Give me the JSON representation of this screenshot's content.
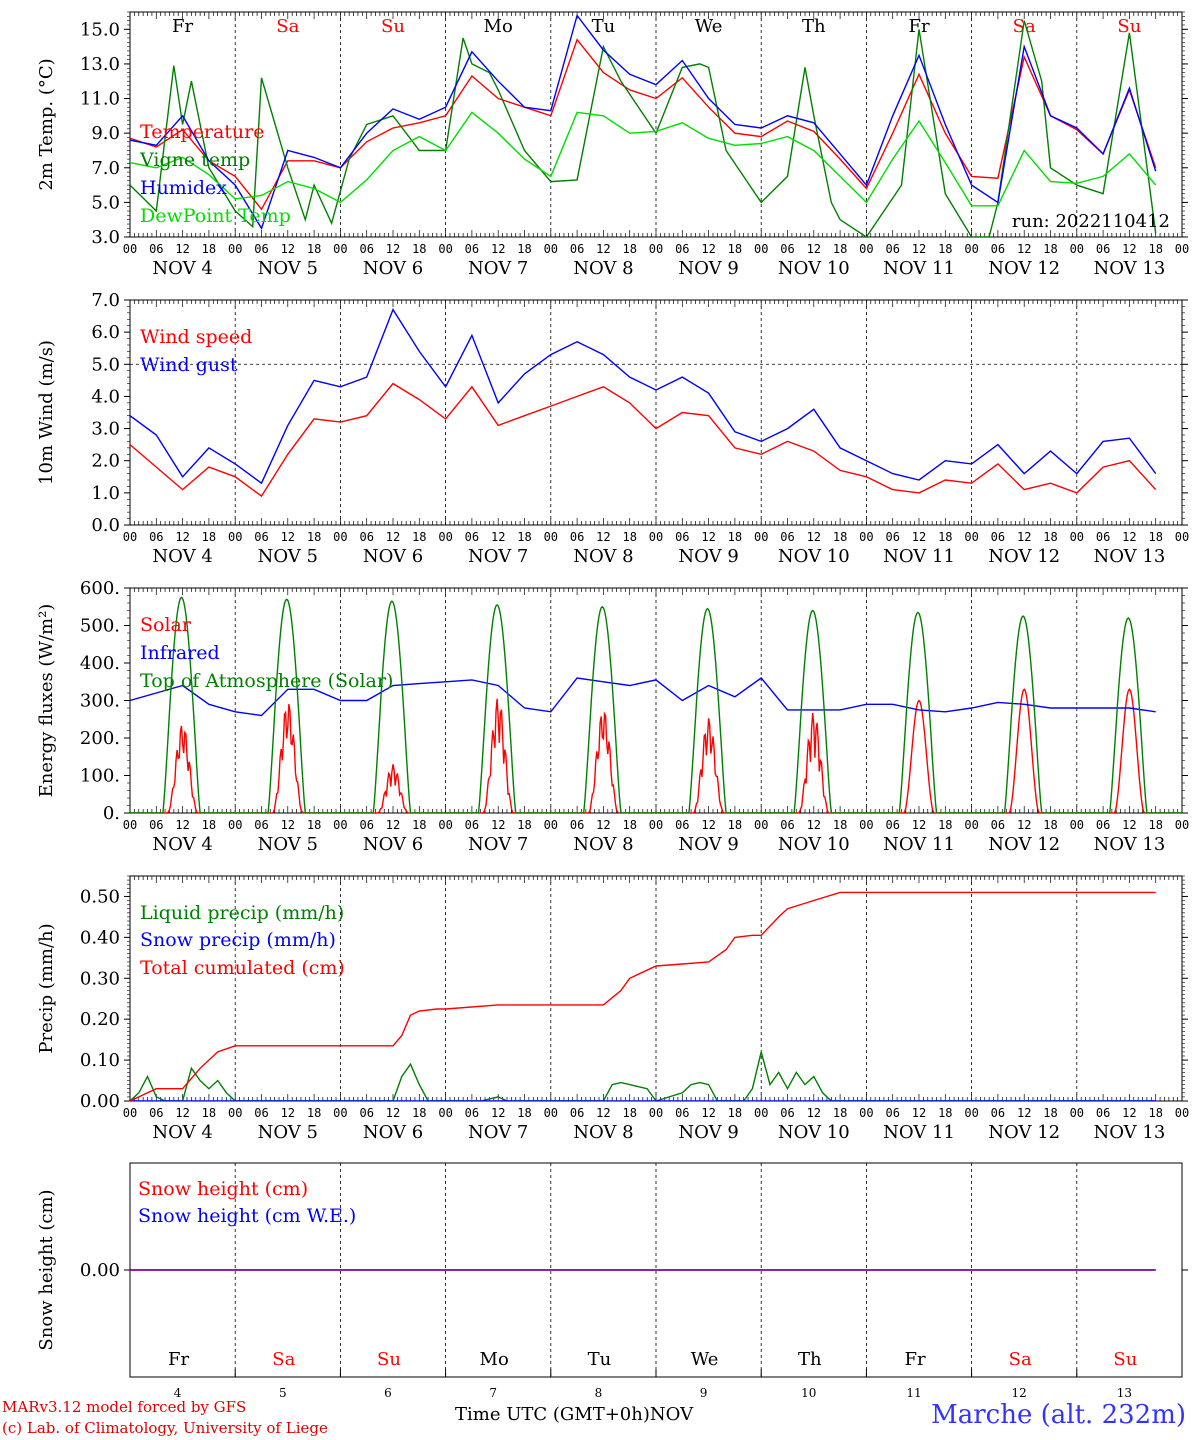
{
  "days": {
    "short": [
      "Fr",
      "Sa",
      "Su",
      "Mo",
      "Tu",
      "We",
      "Th",
      "Fr",
      "Sa",
      "Su"
    ],
    "weekend": [
      false,
      true,
      true,
      false,
      false,
      false,
      false,
      false,
      true,
      true
    ],
    "labels": [
      "NOV  4",
      "NOV  5",
      "NOV  6",
      "NOV  7",
      "NOV  8",
      "NOV  9",
      "NOV 10",
      "NOV 11",
      "NOV 12",
      "NOV 13"
    ],
    "numbers": [
      "4",
      "5",
      "6",
      "7",
      "8",
      "9",
      "10",
      "11",
      "12",
      "13"
    ],
    "hours": [
      "00",
      "06",
      "12",
      "18"
    ],
    "hour_end": "00"
  },
  "colors": {
    "red": "#ff0000",
    "dark_green": "#008000",
    "blue": "#0000ff",
    "light_green": "#00dd00",
    "purple": "#7f00a0",
    "station": "#3333ff"
  },
  "footer": {
    "credit_line1": "MARv3.12 model forced by GFS",
    "credit_line2": "(c) Lab. of Climatology, University of Liege",
    "time_axis": "Time UTC (GMT+0h)",
    "month": "NOV",
    "station": "Marche (alt. 232m)"
  },
  "chart_data": [
    {
      "type": "line",
      "ylabel": "2m Temp. (°C)",
      "ylim": [
        3,
        16
      ],
      "yticks": [
        "3.0",
        "5.0",
        "7.0",
        "9.0",
        "11.0",
        "13.0",
        "15.0"
      ],
      "run_label": "run: 2022110412",
      "x_unit": "hours since NOV 4 00 UTC",
      "series": [
        {
          "name": "Temperature",
          "color": "#ff0000",
          "x": [
            0,
            6,
            12,
            18,
            24,
            30,
            36,
            42,
            48,
            54,
            60,
            66,
            72,
            78,
            84,
            90,
            96,
            102,
            108,
            114,
            120,
            126,
            132,
            138,
            144,
            150,
            156,
            162,
            168,
            174,
            180,
            186,
            192,
            198,
            204,
            210,
            216,
            222,
            228,
            234
          ],
          "y": [
            8.7,
            8.2,
            9.2,
            7.4,
            6.5,
            4.6,
            7.4,
            7.4,
            7.0,
            8.5,
            9.3,
            9.6,
            10.0,
            12.3,
            11.0,
            10.5,
            10.0,
            14.4,
            12.5,
            11.5,
            11.0,
            12.2,
            10.5,
            9.0,
            8.8,
            9.7,
            9.1,
            7.5,
            5.8,
            9.0,
            12.4,
            9.0,
            6.5,
            6.4,
            13.4,
            10.0,
            9.2,
            7.8,
            11.5,
            7.0
          ]
        },
        {
          "name": "Vigne temp",
          "color": "#008000",
          "x": [
            0,
            6,
            10,
            12,
            14,
            18,
            24,
            28,
            30,
            36,
            40,
            42,
            46,
            50,
            54,
            60,
            66,
            72,
            76,
            78,
            82,
            84,
            90,
            96,
            102,
            108,
            112,
            120,
            126,
            130,
            132,
            136,
            144,
            150,
            154,
            156,
            160,
            162,
            168,
            176,
            180,
            186,
            192,
            196,
            198,
            204,
            208,
            210,
            216,
            222,
            228,
            234
          ],
          "y": [
            6.0,
            4.5,
            12.9,
            9.5,
            12.0,
            7.0,
            4.5,
            3.6,
            12.2,
            7.0,
            4.0,
            6.0,
            3.8,
            7.5,
            9.5,
            10.0,
            8.0,
            8.0,
            14.5,
            13.0,
            12.5,
            11.5,
            8.0,
            6.2,
            6.3,
            14.0,
            12.0,
            9.0,
            12.8,
            13.0,
            12.8,
            8.0,
            5.0,
            6.5,
            12.8,
            10.0,
            5.0,
            4.0,
            3.0,
            6.0,
            15.0,
            5.5,
            3.0,
            3.0,
            5.0,
            15.5,
            12.0,
            7.0,
            6.0,
            5.5,
            14.8,
            3.2
          ]
        },
        {
          "name": "Humidex",
          "color": "#0000ff",
          "x": [
            0,
            6,
            12,
            18,
            24,
            30,
            36,
            42,
            48,
            54,
            60,
            66,
            72,
            78,
            84,
            90,
            96,
            102,
            108,
            114,
            120,
            126,
            132,
            138,
            144,
            150,
            156,
            162,
            168,
            174,
            180,
            186,
            192,
            198,
            204,
            210,
            216,
            222,
            228,
            234
          ],
          "y": [
            8.6,
            8.3,
            10.0,
            7.4,
            6.0,
            3.5,
            8.0,
            7.6,
            7.0,
            9.0,
            10.4,
            9.8,
            10.5,
            13.7,
            12.0,
            10.5,
            10.3,
            15.8,
            13.8,
            12.4,
            11.8,
            13.2,
            11.0,
            9.5,
            9.3,
            10.0,
            9.6,
            7.8,
            6.0,
            10.0,
            13.5,
            9.5,
            6.0,
            5.0,
            14.0,
            10.0,
            9.3,
            7.8,
            11.6,
            6.8
          ]
        },
        {
          "name": "DewPoint Temp",
          "color": "#00dd00",
          "x": [
            0,
            6,
            12,
            18,
            24,
            30,
            36,
            42,
            48,
            54,
            60,
            66,
            72,
            78,
            84,
            90,
            96,
            102,
            108,
            114,
            120,
            126,
            132,
            138,
            144,
            150,
            156,
            162,
            168,
            174,
            180,
            186,
            192,
            198,
            204,
            210,
            216,
            222,
            228,
            234
          ],
          "y": [
            7.3,
            7.0,
            7.6,
            6.6,
            5.2,
            5.4,
            6.2,
            5.8,
            5.0,
            6.3,
            8.0,
            8.8,
            8.0,
            10.2,
            9.0,
            7.5,
            6.5,
            10.2,
            10.0,
            9.0,
            9.1,
            9.6,
            8.7,
            8.3,
            8.4,
            8.8,
            8.0,
            6.5,
            5.0,
            7.5,
            9.7,
            7.3,
            4.8,
            4.8,
            8.0,
            6.2,
            6.1,
            6.5,
            7.8,
            6.0
          ]
        }
      ]
    },
    {
      "type": "line",
      "ylabel": "10m Wind (m/s)",
      "ylim": [
        0,
        7
      ],
      "yticks": [
        "0.0",
        "1.0",
        "2.0",
        "3.0",
        "4.0",
        "5.0",
        "6.0",
        "7.0"
      ],
      "x_unit": "hours since NOV 4 00 UTC",
      "series": [
        {
          "name": "Wind speed",
          "color": "#ff0000",
          "x": [
            0,
            6,
            12,
            18,
            24,
            30,
            36,
            42,
            48,
            54,
            60,
            66,
            72,
            78,
            84,
            90,
            96,
            102,
            108,
            114,
            120,
            126,
            132,
            138,
            144,
            150,
            156,
            162,
            168,
            174,
            180,
            186,
            192,
            198,
            204,
            210,
            216,
            222,
            228,
            234
          ],
          "y": [
            2.5,
            1.8,
            1.1,
            1.8,
            1.5,
            0.9,
            2.2,
            3.3,
            3.2,
            3.4,
            4.4,
            3.9,
            3.3,
            4.3,
            3.1,
            3.4,
            3.7,
            4.0,
            4.3,
            3.8,
            3.0,
            3.5,
            3.4,
            2.4,
            2.2,
            2.6,
            2.3,
            1.7,
            1.5,
            1.1,
            1.0,
            1.4,
            1.3,
            1.9,
            1.1,
            1.3,
            1.0,
            1.8,
            2.0,
            1.1
          ]
        },
        {
          "name": "Wind gust",
          "color": "#0000ff",
          "x": [
            0,
            6,
            12,
            18,
            24,
            30,
            36,
            42,
            48,
            54,
            60,
            66,
            72,
            78,
            84,
            90,
            96,
            102,
            108,
            114,
            120,
            126,
            132,
            138,
            144,
            150,
            156,
            162,
            168,
            174,
            180,
            186,
            192,
            198,
            204,
            210,
            216,
            222,
            228,
            234
          ],
          "y": [
            3.4,
            2.8,
            1.5,
            2.4,
            1.9,
            1.3,
            3.1,
            4.5,
            4.3,
            4.6,
            6.7,
            5.4,
            4.3,
            5.9,
            3.8,
            4.7,
            5.3,
            5.7,
            5.3,
            4.6,
            4.2,
            4.6,
            4.1,
            2.9,
            2.6,
            3.0,
            3.6,
            2.4,
            2.0,
            1.6,
            1.4,
            2.0,
            1.9,
            2.5,
            1.6,
            2.3,
            1.6,
            2.6,
            2.7,
            1.6
          ]
        }
      ]
    },
    {
      "type": "line",
      "ylabel": "Energy fluxes (W/m²)",
      "ylim": [
        0,
        600
      ],
      "yticks": [
        "0.",
        "100.",
        "200.",
        "300.",
        "400.",
        "500.",
        "600."
      ],
      "x_unit": "hours since NOV 4 00 UTC",
      "series": [
        {
          "name": "Solar",
          "color": "#ff0000",
          "peaks": [
            240,
            300,
            130,
            310,
            280,
            255,
            270,
            300,
            330,
            330
          ]
        },
        {
          "name": "Infrared",
          "color": "#0000ff",
          "x": [
            0,
            6,
            12,
            18,
            24,
            30,
            36,
            42,
            48,
            54,
            60,
            66,
            72,
            78,
            84,
            90,
            96,
            102,
            108,
            114,
            120,
            126,
            132,
            138,
            144,
            150,
            156,
            162,
            168,
            174,
            180,
            186,
            192,
            198,
            204,
            210,
            216,
            222,
            228,
            234
          ],
          "y": [
            300,
            320,
            340,
            290,
            270,
            260,
            330,
            330,
            300,
            300,
            340,
            345,
            350,
            355,
            340,
            280,
            270,
            360,
            350,
            340,
            355,
            300,
            340,
            310,
            360,
            275,
            275,
            275,
            290,
            290,
            275,
            270,
            280,
            295,
            290,
            280,
            280,
            280,
            280,
            270
          ]
        },
        {
          "name": "Top of Atmosphere (Solar)",
          "color": "#008000",
          "peaks": [
            575,
            570,
            565,
            555,
            550,
            545,
            540,
            535,
            525,
            520
          ]
        }
      ]
    },
    {
      "type": "line",
      "ylabel": "Precip (mm/h)",
      "ylim": [
        0,
        0.55
      ],
      "yticks": [
        "0.00",
        "0.10",
        "0.20",
        "0.30",
        "0.40",
        "0.50"
      ],
      "x_unit": "hours since NOV 4 00 UTC",
      "series": [
        {
          "name": "Liquid precip (mm/h)",
          "color": "#008000",
          "x": [
            0,
            2,
            4,
            6,
            8,
            12,
            14,
            16,
            18,
            20,
            22,
            24,
            60,
            62,
            64,
            66,
            68,
            80,
            84,
            86,
            88,
            108,
            110,
            112,
            114,
            116,
            118,
            120,
            126,
            128,
            130,
            132,
            134,
            140,
            142,
            144,
            146,
            148,
            150,
            152,
            154,
            156,
            158,
            160,
            234
          ],
          "y": [
            0,
            0.02,
            0.06,
            0.01,
            0,
            0,
            0.08,
            0.05,
            0.03,
            0.05,
            0.02,
            0,
            0,
            0.06,
            0.09,
            0.04,
            0,
            0,
            0.01,
            0,
            0,
            0,
            0.04,
            0.045,
            0.04,
            0.035,
            0.03,
            0,
            0.02,
            0.04,
            0.045,
            0.04,
            0,
            0,
            0.03,
            0.12,
            0.04,
            0.07,
            0.03,
            0.07,
            0.04,
            0.06,
            0.02,
            0,
            0
          ]
        },
        {
          "name": "Snow precip (mm/h)",
          "color": "#0000ff",
          "x": [
            0,
            234
          ],
          "y": [
            0,
            0
          ]
        },
        {
          "name": "Total cumulated (cm)",
          "color": "#ff0000",
          "x": [
            0,
            2,
            6,
            12,
            16,
            20,
            24,
            60,
            62,
            64,
            66,
            70,
            72,
            84,
            96,
            108,
            112,
            114,
            120,
            126,
            132,
            136,
            138,
            142,
            144,
            148,
            150,
            156,
            162,
            234
          ],
          "y": [
            0,
            0.01,
            0.03,
            0.03,
            0.08,
            0.12,
            0.135,
            0.135,
            0.16,
            0.21,
            0.22,
            0.225,
            0.225,
            0.235,
            0.235,
            0.235,
            0.27,
            0.3,
            0.33,
            0.335,
            0.34,
            0.37,
            0.4,
            0.405,
            0.405,
            0.45,
            0.47,
            0.49,
            0.51,
            0.51
          ]
        }
      ]
    },
    {
      "type": "line",
      "ylabel": "Snow height (cm)",
      "yticks": [
        "0.00"
      ],
      "x_unit": "hours since NOV 4 00 UTC",
      "series": [
        {
          "name": "Snow height (cm)",
          "color": "#ff0000",
          "x": [
            0,
            234
          ],
          "y": [
            0,
            0
          ]
        },
        {
          "name": "Snow height (cm W.E.)",
          "color": "#0000ff",
          "x": [
            0,
            234
          ],
          "y": [
            0,
            0
          ]
        }
      ]
    }
  ]
}
